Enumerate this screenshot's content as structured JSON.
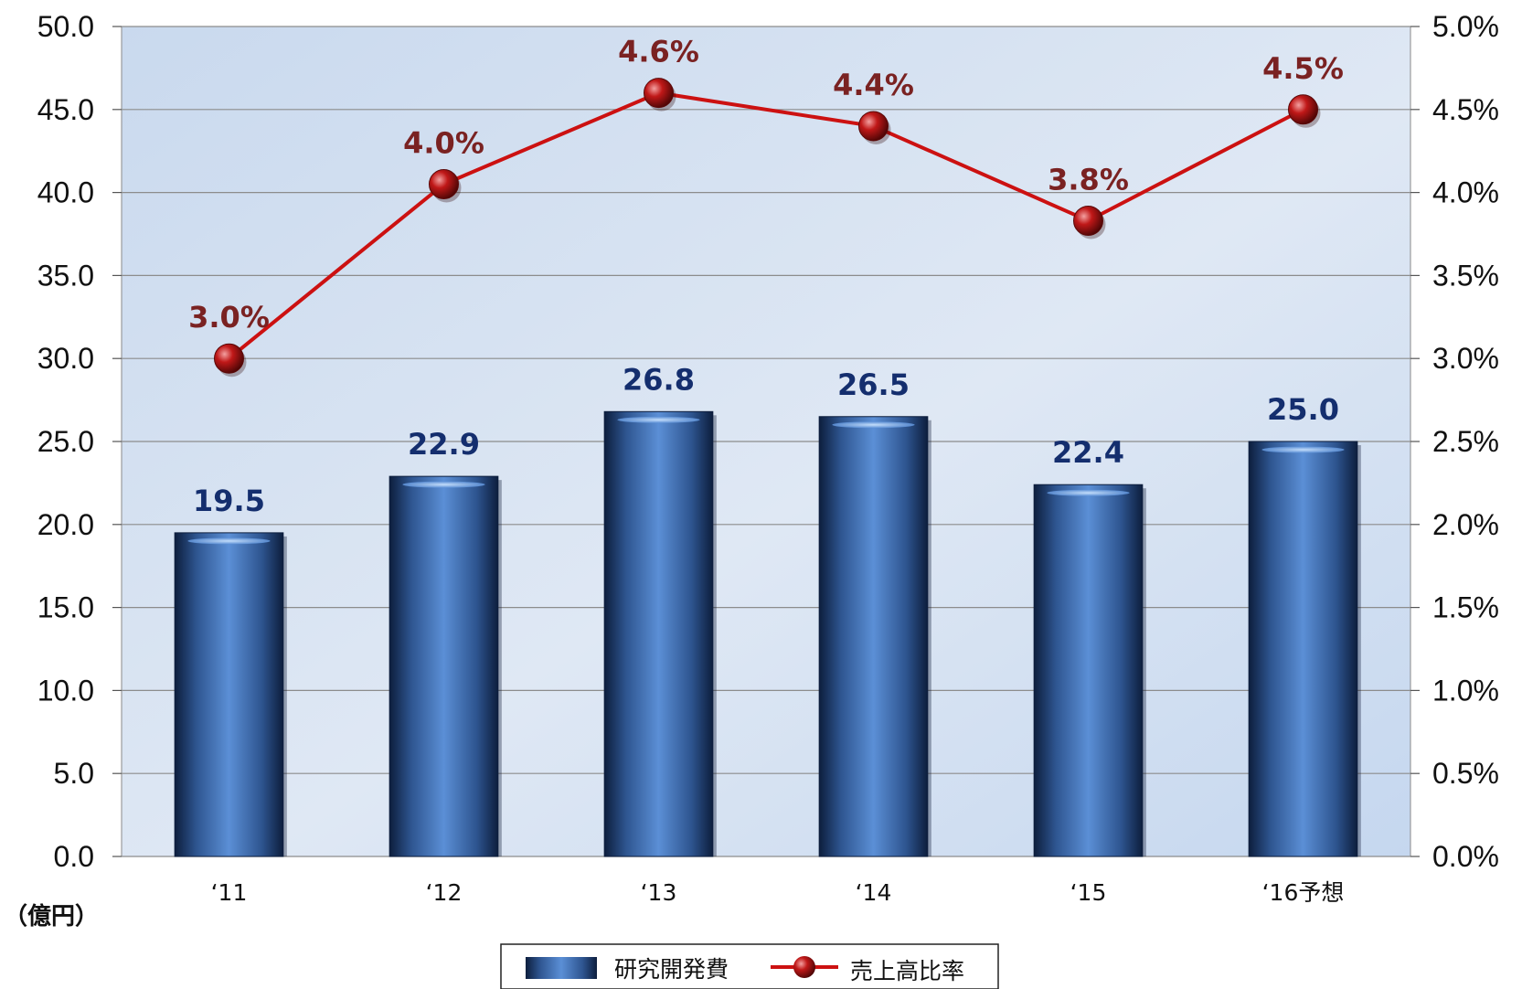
{
  "chart_data": {
    "type": "bar",
    "categories": [
      "‘11",
      "‘12",
      "‘13",
      "‘14",
      "‘15",
      "‘16予想"
    ],
    "series": [
      {
        "name": "研究開発費",
        "type": "bar",
        "axis": "left",
        "values": [
          19.5,
          22.9,
          26.8,
          26.5,
          22.4,
          25.0
        ],
        "labels": [
          "19.5",
          "22.9",
          "26.8",
          "26.5",
          "22.4",
          "25.0"
        ],
        "color": "#3c6fb8"
      },
      {
        "name": "売上高比率",
        "type": "line",
        "axis": "right",
        "values": [
          3.0,
          4.05,
          4.6,
          4.4,
          3.83,
          4.5
        ],
        "labels": [
          "3.0%",
          "4.0%",
          "4.6%",
          "4.4%",
          "3.8%",
          "4.5%"
        ],
        "color": "#cc1111"
      }
    ],
    "y_left": {
      "range": [
        0,
        50
      ],
      "ticks": [
        "0.0",
        "5.0",
        "10.0",
        "15.0",
        "20.0",
        "25.0",
        "30.0",
        "35.0",
        "40.0",
        "45.0",
        "50.0"
      ],
      "unit_label": "（億円）"
    },
    "y_right": {
      "range": [
        0,
        5
      ],
      "ticks": [
        "0.0%",
        "0.5%",
        "1.0%",
        "1.5%",
        "2.0%",
        "2.5%",
        "3.0%",
        "3.5%",
        "4.0%",
        "4.5%",
        "5.0%"
      ]
    },
    "grid": true,
    "legend": "bottom-center"
  }
}
